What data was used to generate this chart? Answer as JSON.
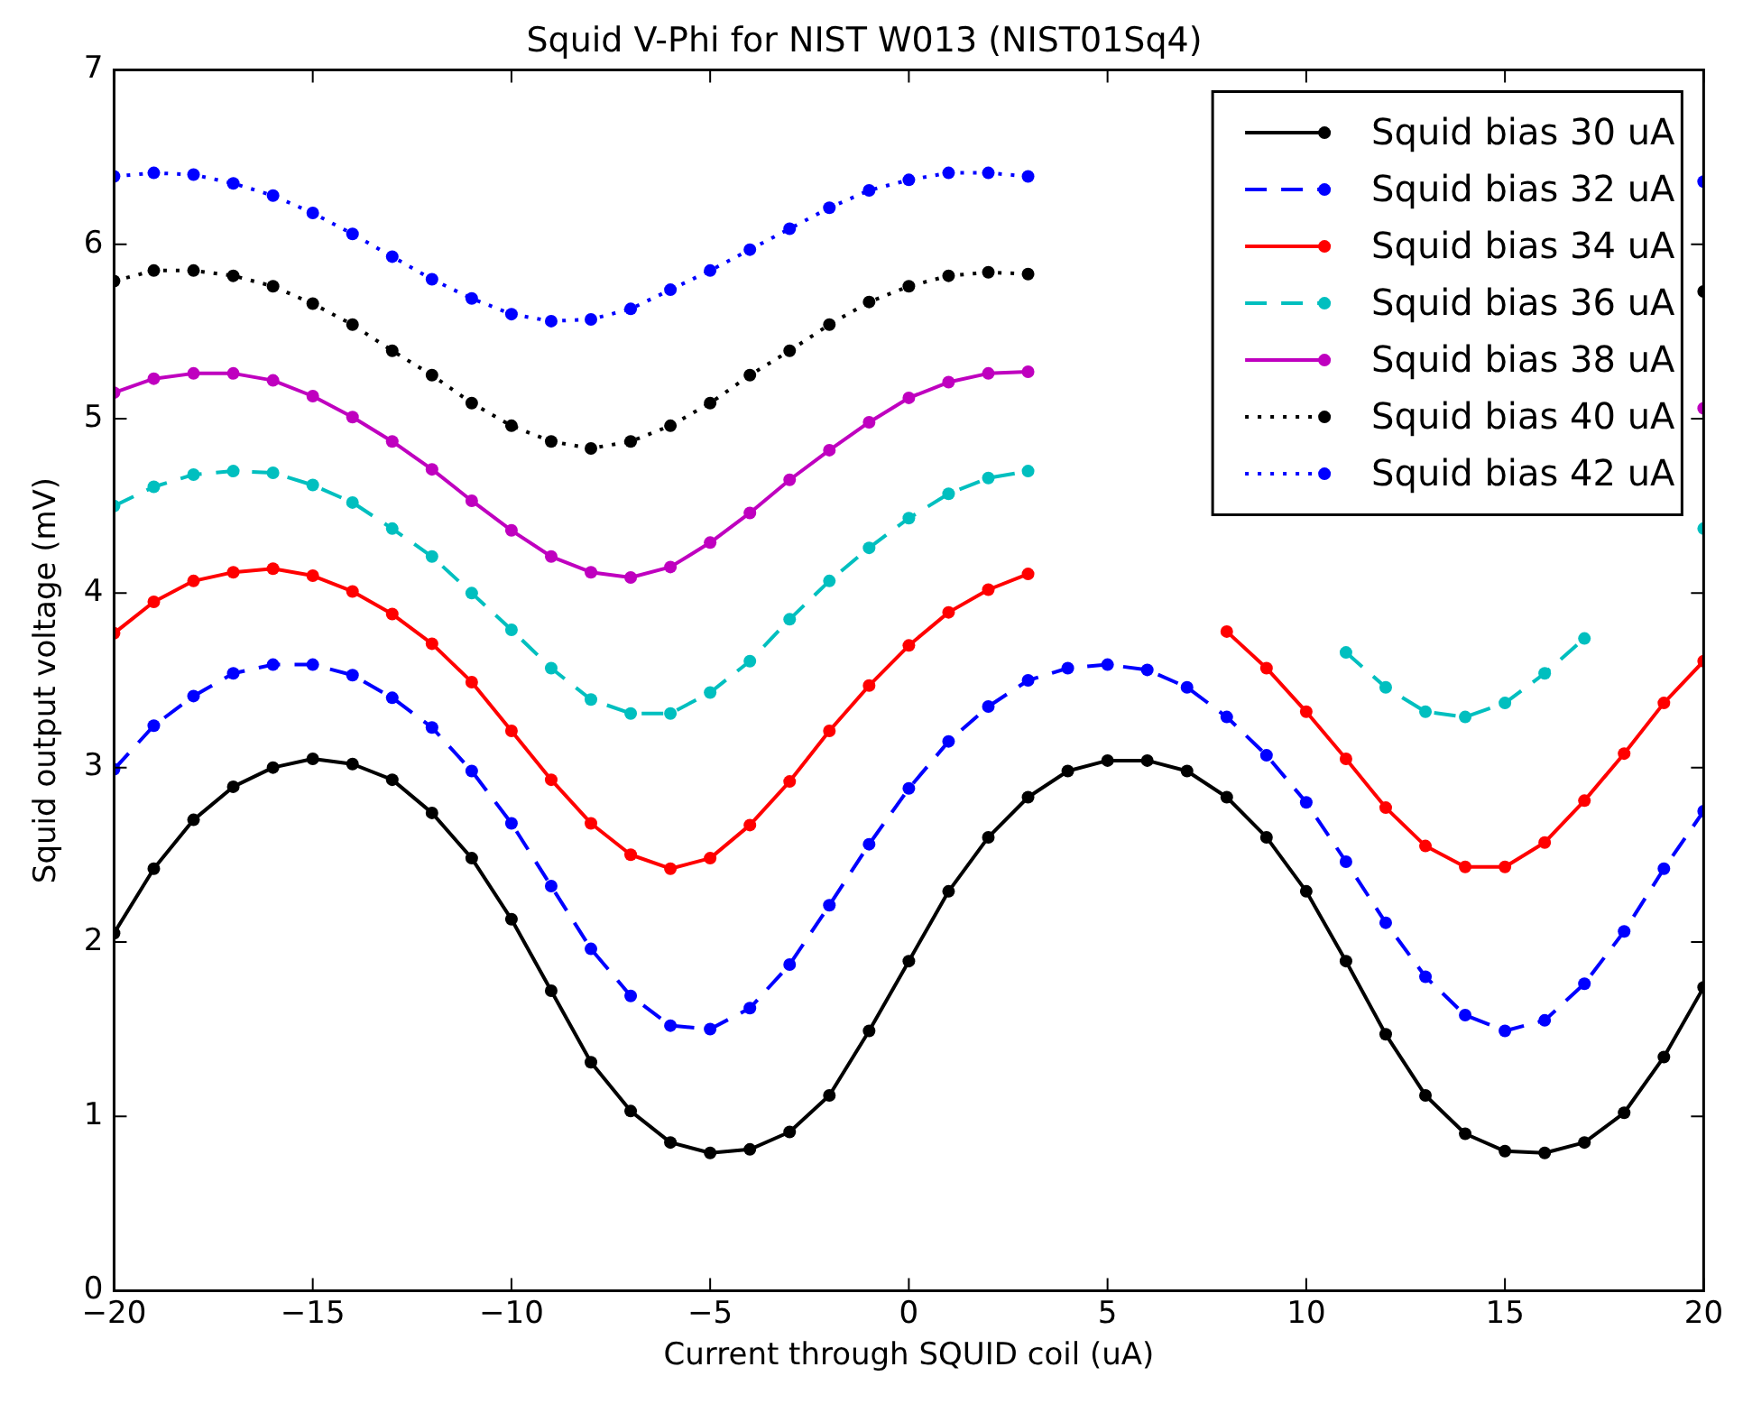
{
  "chart_data": {
    "type": "line",
    "title": "Squid V-Phi for NIST W013 (NIST01Sq4)",
    "xlabel": "Current through SQUID coil (uA)",
    "ylabel": "Squid output voltage (mV)",
    "x": [
      -20,
      -19,
      -18,
      -17,
      -16,
      -15,
      -14,
      -13,
      -12,
      -11,
      -10,
      -9,
      -8,
      -7,
      -6,
      -5,
      -4,
      -3,
      -2,
      -1,
      0,
      1,
      2,
      3,
      4,
      5,
      6,
      7,
      8,
      9,
      10,
      11,
      12,
      13,
      14,
      15,
      16,
      17,
      18,
      19,
      20
    ],
    "series": [
      {
        "name": "Squid bias 30 uA",
        "color": "#000000",
        "line_style": "solid",
        "values": [
          2.05,
          2.42,
          2.7,
          2.89,
          3.0,
          3.05,
          3.02,
          2.93,
          2.74,
          2.48,
          2.13,
          1.72,
          1.31,
          1.03,
          0.85,
          0.79,
          0.81,
          0.91,
          1.12,
          1.49,
          1.89,
          2.29,
          2.6,
          2.83,
          2.98,
          3.04,
          3.04,
          2.98,
          2.83,
          2.6,
          2.29,
          1.89,
          1.47,
          1.12,
          0.9,
          0.8,
          0.79,
          0.85,
          1.02,
          1.34,
          1.74
        ]
      },
      {
        "name": "Squid bias 32 uA",
        "color": "#0000ff",
        "line_style": "dashed",
        "values": [
          2.99,
          3.24,
          3.41,
          3.54,
          3.59,
          3.59,
          3.53,
          3.4,
          3.23,
          2.98,
          2.68,
          2.32,
          1.96,
          1.69,
          1.52,
          1.5,
          1.62,
          1.87,
          2.21,
          2.56,
          2.88,
          3.15,
          3.35,
          3.5,
          3.57,
          3.59,
          3.56,
          3.46,
          3.29,
          3.07,
          2.8,
          2.46,
          2.11,
          1.8,
          1.58,
          1.49,
          1.55,
          1.76,
          2.06,
          2.42,
          2.75
        ]
      },
      {
        "name": "Squid bias 34 uA",
        "color": "#ff0000",
        "line_style": "solid",
        "values": [
          3.77,
          3.95,
          4.07,
          4.12,
          4.14,
          4.1,
          4.01,
          3.88,
          3.71,
          3.49,
          3.21,
          2.93,
          2.68,
          2.5,
          2.42,
          2.48,
          2.67,
          2.92,
          3.21,
          3.47,
          3.7,
          3.89,
          4.02,
          4.11,
          null,
          null,
          null,
          null,
          3.78,
          3.57,
          3.32,
          3.05,
          2.77,
          2.55,
          2.43,
          2.43,
          2.57,
          2.81,
          3.08,
          3.37,
          3.61
        ]
      },
      {
        "name": "Squid bias 36 uA",
        "color": "#00bfbf",
        "line_style": "dashed",
        "values": [
          4.5,
          4.61,
          4.68,
          4.7,
          4.69,
          4.62,
          4.52,
          4.37,
          4.21,
          4.0,
          3.79,
          3.57,
          3.39,
          3.31,
          3.31,
          3.43,
          3.61,
          3.85,
          4.07,
          4.26,
          4.43,
          4.57,
          4.66,
          4.7,
          null,
          null,
          null,
          null,
          null,
          null,
          null,
          3.66,
          3.46,
          3.32,
          3.29,
          3.37,
          3.54,
          3.74,
          null,
          null,
          4.37
        ]
      },
      {
        "name": "Squid bias 38 uA",
        "color": "#bf00bf",
        "line_style": "solid",
        "values": [
          5.15,
          5.23,
          5.26,
          5.26,
          5.22,
          5.13,
          5.01,
          4.87,
          4.71,
          4.53,
          4.36,
          4.21,
          4.12,
          4.09,
          4.15,
          4.29,
          4.46,
          4.65,
          4.82,
          4.98,
          5.12,
          5.21,
          5.26,
          5.27,
          null,
          null,
          null,
          null,
          null,
          null,
          null,
          null,
          null,
          null,
          null,
          null,
          null,
          null,
          null,
          null,
          5.06
        ]
      },
      {
        "name": "Squid bias 40 uA",
        "color": "#000000",
        "line_style": "dotted",
        "values": [
          5.79,
          5.85,
          5.85,
          5.82,
          5.76,
          5.66,
          5.54,
          5.39,
          5.25,
          5.09,
          4.96,
          4.87,
          4.83,
          4.87,
          4.96,
          5.09,
          5.25,
          5.39,
          5.54,
          5.67,
          5.76,
          5.82,
          5.84,
          5.83,
          null,
          null,
          null,
          null,
          null,
          null,
          null,
          null,
          null,
          null,
          null,
          null,
          null,
          null,
          null,
          null,
          5.73
        ]
      },
      {
        "name": "Squid bias 42 uA",
        "color": "#0000ff",
        "line_style": "dotted",
        "values": [
          6.39,
          6.41,
          6.4,
          6.35,
          6.28,
          6.18,
          6.06,
          5.93,
          5.8,
          5.69,
          5.6,
          5.56,
          5.57,
          5.63,
          5.74,
          5.85,
          5.97,
          6.09,
          6.21,
          6.31,
          6.37,
          6.41,
          6.41,
          6.39,
          null,
          null,
          null,
          null,
          null,
          null,
          null,
          null,
          null,
          null,
          null,
          null,
          null,
          null,
          null,
          null,
          6.36
        ]
      }
    ],
    "xlim": [
      -20,
      20
    ],
    "xticks": [
      {
        "value": -20,
        "label": "−20"
      },
      {
        "value": -15,
        "label": "−15"
      },
      {
        "value": -10,
        "label": "−10"
      },
      {
        "value": -5,
        "label": "−5"
      },
      0,
      5,
      10,
      15,
      20
    ],
    "ylim": [
      0,
      7
    ],
    "yticks": [
      0,
      1,
      2,
      3,
      4,
      5,
      6,
      7
    ],
    "marker": "circle",
    "grid": false,
    "legend": "top right"
  }
}
